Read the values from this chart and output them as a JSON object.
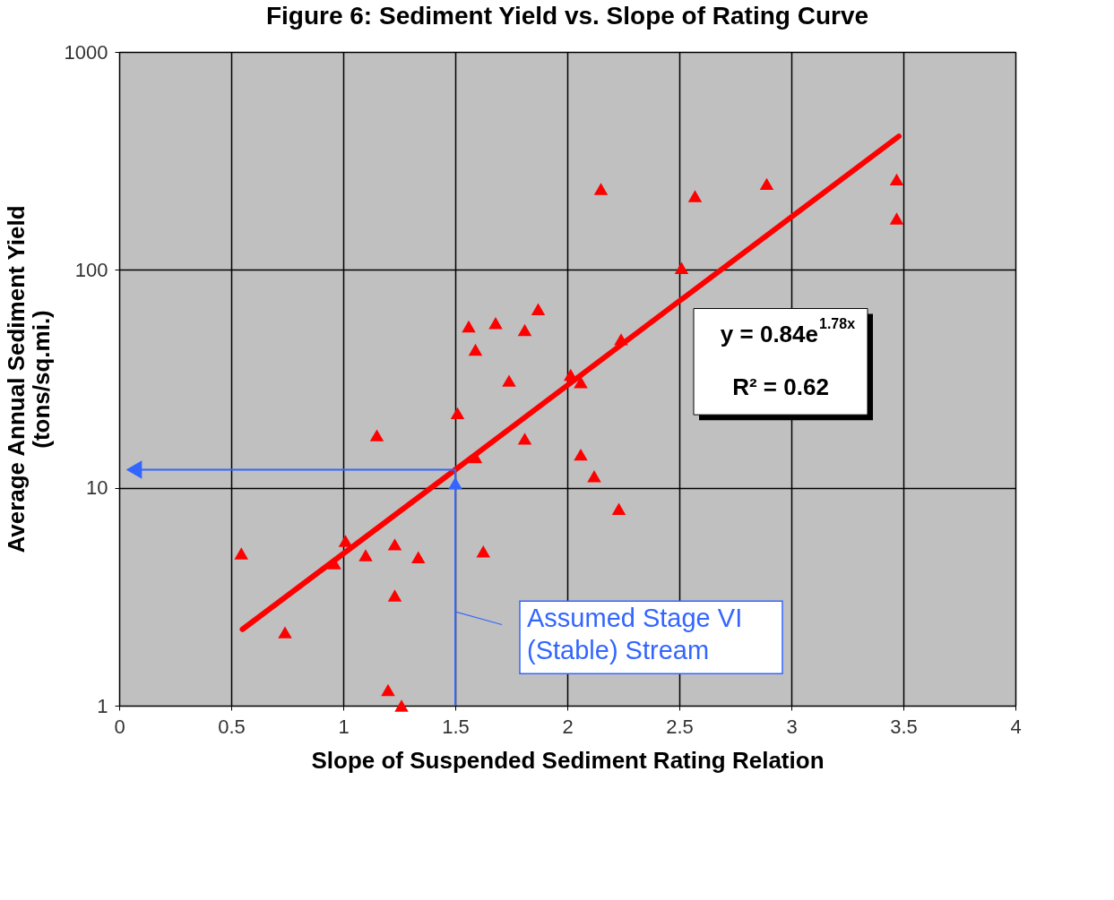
{
  "chart_data": {
    "type": "scatter",
    "title": "Figure 6: Sediment Yield vs. Slope of Rating Curve",
    "xlabel": "Slope of Suspended Sediment Rating Relation",
    "ylabel": "Average Annual Sediment Yield\n(tons/sq.mi.)",
    "xlim": [
      0,
      4
    ],
    "xticks": [
      0,
      0.5,
      1,
      1.5,
      2,
      2.5,
      3,
      3.5,
      4
    ],
    "ylim": [
      1,
      1000
    ],
    "yticks": [
      1,
      10,
      100,
      1000
    ],
    "log": "y",
    "grid": true,
    "marker": "triangle",
    "series": [
      {
        "color": "#ff0000",
        "x": [
          0.545,
          0.74,
          0.96,
          1.01,
          1.1,
          1.15,
          1.23,
          1.23,
          1.335,
          1.2,
          1.26,
          1.51,
          1.56,
          1.59,
          1.59,
          1.625,
          1.68,
          1.74,
          1.81,
          1.81,
          1.87,
          2.015,
          2.06,
          2.06,
          2.12,
          2.23,
          2.24,
          2.15,
          2.51,
          2.57,
          2.89,
          3.47,
          3.47
        ],
        "values": [
          5.0,
          2.17,
          4.5,
          5.7,
          4.9,
          17.4,
          5.5,
          3.2,
          4.8,
          1.18,
          1.0,
          22,
          55,
          43,
          13.8,
          5.1,
          57,
          31,
          53,
          16.8,
          66,
          33,
          30.5,
          14.2,
          11.3,
          8.0,
          48,
          235,
          102,
          218,
          248,
          260,
          172
        ]
      },
      {
        "type": "line",
        "marker": "none",
        "color": "#ff0000",
        "x": [
          0.55,
          1.5,
          2.5,
          3.48
        ],
        "values": [
          2.24,
          12.1,
          71.9,
          410
        ]
      },
      {
        "type": "line",
        "marker": "none",
        "color": "#3366ff",
        "x": [
          0.05,
          1.5,
          1.5
        ],
        "values": [
          12.1,
          12.1,
          1
        ]
      },
      {
        "color": "#3366ff",
        "x": [
          1.5
        ],
        "values": [
          10.5
        ]
      }
    ],
    "annotations": [
      "y = 0.84e$^{1.78x}$",
      "R² = 0.62",
      {
        "text": "Assumed Stage VI\n(Stable) Stream",
        "x": 1.5,
        "y": 2.7
      }
    ]
  }
}
